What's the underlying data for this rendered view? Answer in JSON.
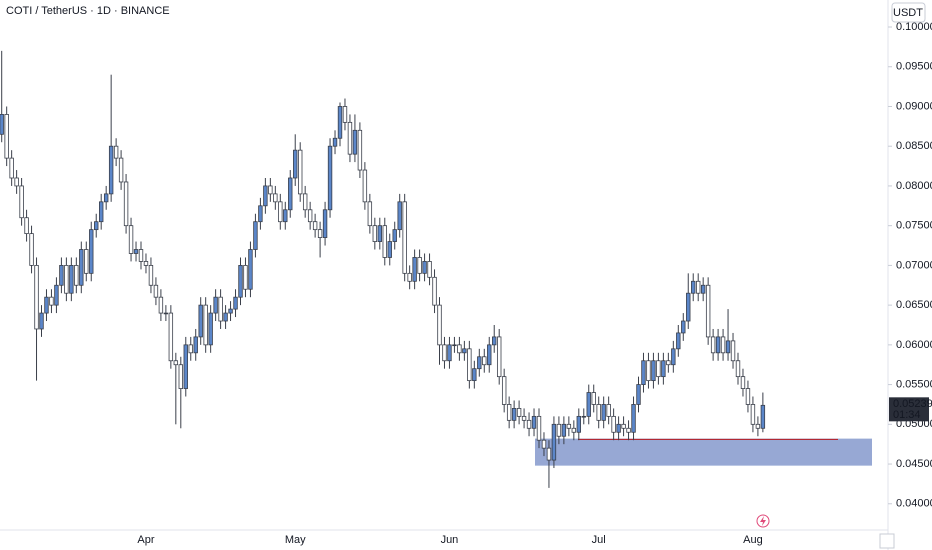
{
  "chart_data": {
    "type": "candlestick",
    "title": "COTI / TetherUS · 1D · BINANCE",
    "currency": "USDT",
    "categories": [
      null,
      null,
      null,
      null,
      null,
      null,
      null,
      null,
      null,
      null,
      null,
      null,
      null,
      null,
      null,
      null,
      null,
      null,
      null,
      null,
      null,
      null,
      null,
      null,
      null,
      null,
      null,
      null,
      null,
      "Apr",
      null,
      null,
      null,
      null,
      null,
      null,
      null,
      null,
      null,
      null,
      null,
      null,
      null,
      null,
      null,
      null,
      null,
      null,
      null,
      null,
      null,
      null,
      null,
      null,
      null,
      null,
      null,
      null,
      null,
      "May",
      null,
      null,
      null,
      null,
      null,
      null,
      null,
      null,
      null,
      null,
      null,
      null,
      null,
      null,
      null,
      null,
      null,
      null,
      null,
      null,
      null,
      null,
      null,
      null,
      null,
      null,
      null,
      null,
      null,
      null,
      "Jun",
      null,
      null,
      null,
      null,
      null,
      null,
      null,
      null,
      null,
      null,
      null,
      null,
      null,
      null,
      null,
      null,
      null,
      null,
      null,
      null,
      null,
      null,
      null,
      null,
      null,
      null,
      null,
      null,
      null,
      "Jul",
      null,
      null,
      null,
      null,
      null,
      null,
      null,
      null,
      null,
      null,
      null,
      null,
      null,
      null,
      null,
      null,
      null,
      null,
      null,
      null,
      null,
      null,
      null,
      null,
      null,
      null,
      null,
      null,
      null,
      null,
      "Aug",
      null,
      null
    ],
    "open": [
      0.0865,
      0.089,
      0.0835,
      0.081,
      0.08,
      0.076,
      0.074,
      0.07,
      0.062,
      0.064,
      0.066,
      0.065,
      0.0675,
      0.07,
      0.0665,
      0.07,
      0.0675,
      0.072,
      0.069,
      0.0745,
      0.0755,
      0.078,
      0.079,
      0.085,
      0.0835,
      0.0805,
      0.075,
      0.0715,
      0.072,
      0.0705,
      0.07,
      0.0675,
      0.066,
      0.064,
      0.064,
      0.058,
      0.0575,
      0.0545,
      0.06,
      0.059,
      0.061,
      0.065,
      0.06,
      0.064,
      0.066,
      0.063,
      0.064,
      0.0645,
      0.066,
      0.07,
      0.067,
      0.072,
      0.0755,
      0.0775,
      0.08,
      0.079,
      0.078,
      0.0755,
      0.077,
      0.081,
      0.0845,
      0.079,
      0.077,
      0.0755,
      0.0745,
      0.0735,
      0.077,
      0.085,
      0.086,
      0.09,
      0.088,
      0.084,
      0.087,
      0.082,
      0.078,
      0.075,
      0.073,
      0.075,
      0.071,
      0.073,
      0.0745,
      0.078,
      0.069,
      0.068,
      0.071,
      0.069,
      0.0705,
      0.0685,
      0.065,
      0.06,
      0.058,
      0.06,
      0.06,
      0.059,
      0.0595,
      0.0555,
      0.057,
      0.0585,
      0.0575,
      0.06,
      0.061,
      0.056,
      0.0525,
      0.0505,
      0.052,
      0.051,
      0.0505,
      0.0495,
      0.051,
      0.048,
      0.047,
      0.0455,
      0.05,
      0.0485,
      0.05,
      0.0495,
      0.049,
      0.051,
      0.051,
      0.054,
      0.0525,
      0.0505,
      0.0525,
      0.051,
      0.049,
      0.05,
      0.0495,
      0.049,
      0.0525,
      0.055,
      0.058,
      0.0555,
      0.058,
      0.056,
      0.058,
      0.0575,
      0.0595,
      0.0615,
      0.063,
      0.0665,
      0.068,
      0.0665,
      0.0675,
      0.061,
      0.059,
      0.061,
      0.059,
      0.0605,
      0.058,
      0.056,
      0.0545,
      0.0525,
      0.05,
      0.0495
    ],
    "high": [
      0.097,
      0.09,
      0.0845,
      0.082,
      0.081,
      0.077,
      0.075,
      0.071,
      0.065,
      0.067,
      0.067,
      0.0685,
      0.071,
      0.071,
      0.071,
      0.071,
      0.073,
      0.073,
      0.0755,
      0.0765,
      0.079,
      0.08,
      0.094,
      0.086,
      0.0845,
      0.0815,
      0.076,
      0.073,
      0.073,
      0.0715,
      0.071,
      0.0685,
      0.067,
      0.065,
      0.065,
      0.059,
      0.0585,
      0.061,
      0.061,
      0.062,
      0.066,
      0.066,
      0.065,
      0.067,
      0.067,
      0.065,
      0.0655,
      0.067,
      0.071,
      0.071,
      0.073,
      0.0765,
      0.0785,
      0.081,
      0.081,
      0.08,
      0.079,
      0.078,
      0.082,
      0.0865,
      0.0855,
      0.08,
      0.078,
      0.0765,
      0.0755,
      0.078,
      0.086,
      0.087,
      0.0905,
      0.091,
      0.089,
      0.089,
      0.088,
      0.083,
      0.079,
      0.076,
      0.076,
      0.076,
      0.074,
      0.0755,
      0.079,
      0.079,
      0.07,
      0.072,
      0.072,
      0.0715,
      0.0715,
      0.0695,
      0.066,
      0.061,
      0.061,
      0.061,
      0.061,
      0.0605,
      0.0605,
      0.058,
      0.0595,
      0.0595,
      0.061,
      0.0625,
      0.062,
      0.057,
      0.0535,
      0.053,
      0.053,
      0.052,
      0.0515,
      0.052,
      0.052,
      0.049,
      0.048,
      0.051,
      0.051,
      0.051,
      0.051,
      0.0505,
      0.052,
      0.052,
      0.055,
      0.055,
      0.0535,
      0.0535,
      0.0535,
      0.052,
      0.051,
      0.051,
      0.0505,
      0.0535,
      0.056,
      0.059,
      0.059,
      0.059,
      0.059,
      0.059,
      0.059,
      0.0605,
      0.0625,
      0.064,
      0.069,
      0.069,
      0.069,
      0.0685,
      0.0685,
      0.062,
      0.062,
      0.062,
      0.0645,
      0.0615,
      0.059,
      0.057,
      0.0555,
      0.0535,
      0.051,
      0.054
    ],
    "low": [
      0.0855,
      0.0825,
      0.08,
      0.079,
      0.075,
      0.073,
      0.069,
      0.0555,
      0.061,
      0.063,
      0.064,
      0.064,
      0.0665,
      0.0655,
      0.0655,
      0.0665,
      0.0665,
      0.068,
      0.068,
      0.0735,
      0.0745,
      0.077,
      0.078,
      0.0825,
      0.0795,
      0.074,
      0.0705,
      0.0705,
      0.0695,
      0.069,
      0.0665,
      0.065,
      0.063,
      0.063,
      0.057,
      0.05,
      0.0495,
      0.0535,
      0.058,
      0.058,
      0.06,
      0.059,
      0.059,
      0.063,
      0.062,
      0.062,
      0.063,
      0.0635,
      0.065,
      0.066,
      0.066,
      0.071,
      0.0745,
      0.0765,
      0.078,
      0.077,
      0.0745,
      0.0745,
      0.076,
      0.08,
      0.078,
      0.076,
      0.0745,
      0.0735,
      0.071,
      0.0725,
      0.076,
      0.084,
      0.085,
      0.087,
      0.083,
      0.083,
      0.081,
      0.077,
      0.074,
      0.072,
      0.072,
      0.07,
      0.07,
      0.072,
      0.0735,
      0.068,
      0.067,
      0.067,
      0.068,
      0.068,
      0.0675,
      0.064,
      0.0575,
      0.057,
      0.057,
      0.059,
      0.058,
      0.058,
      0.0545,
      0.0545,
      0.056,
      0.0565,
      0.0565,
      0.059,
      0.055,
      0.0515,
      0.0495,
      0.0495,
      0.05,
      0.0495,
      0.0485,
      0.0485,
      0.047,
      0.046,
      0.042,
      0.0445,
      0.0475,
      0.0475,
      0.0485,
      0.048,
      0.048,
      0.05,
      0.05,
      0.0515,
      0.0495,
      0.0495,
      0.05,
      0.048,
      0.048,
      0.0485,
      0.048,
      0.048,
      0.0515,
      0.054,
      0.0545,
      0.0545,
      0.055,
      0.055,
      0.0565,
      0.0565,
      0.0585,
      0.0605,
      0.062,
      0.0655,
      0.0655,
      0.0655,
      0.06,
      0.058,
      0.058,
      0.058,
      0.058,
      0.057,
      0.055,
      0.0535,
      0.0515,
      0.049,
      0.0485,
      0.049
    ],
    "close": [
      0.089,
      0.0835,
      0.081,
      0.08,
      0.076,
      0.074,
      0.07,
      0.062,
      0.064,
      0.066,
      0.065,
      0.0675,
      0.07,
      0.0665,
      0.07,
      0.0675,
      0.072,
      0.069,
      0.0745,
      0.0755,
      0.078,
      0.079,
      0.085,
      0.0835,
      0.0805,
      0.075,
      0.0715,
      0.072,
      0.0705,
      0.07,
      0.0675,
      0.066,
      0.064,
      0.064,
      0.058,
      0.0575,
      0.0545,
      0.06,
      0.059,
      0.061,
      0.065,
      0.06,
      0.064,
      0.066,
      0.063,
      0.064,
      0.0645,
      0.066,
      0.07,
      0.067,
      0.072,
      0.0755,
      0.0775,
      0.08,
      0.079,
      0.078,
      0.0755,
      0.077,
      0.081,
      0.0845,
      0.079,
      0.077,
      0.0755,
      0.0745,
      0.0735,
      0.077,
      0.085,
      0.086,
      0.09,
      0.088,
      0.084,
      0.087,
      0.082,
      0.078,
      0.075,
      0.073,
      0.075,
      0.071,
      0.073,
      0.0745,
      0.078,
      0.069,
      0.068,
      0.071,
      0.069,
      0.0705,
      0.0685,
      0.065,
      0.06,
      0.058,
      0.06,
      0.06,
      0.059,
      0.0595,
      0.0555,
      0.057,
      0.0585,
      0.0575,
      0.06,
      0.061,
      0.056,
      0.0525,
      0.0505,
      0.052,
      0.051,
      0.0505,
      0.0495,
      0.051,
      0.048,
      0.047,
      0.0455,
      0.05,
      0.0485,
      0.05,
      0.0495,
      0.049,
      0.051,
      0.051,
      0.054,
      0.0525,
      0.0505,
      0.0525,
      0.051,
      0.049,
      0.05,
      0.0495,
      0.049,
      0.0525,
      0.055,
      0.058,
      0.0555,
      0.058,
      0.056,
      0.058,
      0.0575,
      0.0595,
      0.0615,
      0.063,
      0.0665,
      0.068,
      0.0665,
      0.0675,
      0.061,
      0.059,
      0.061,
      0.059,
      0.0605,
      0.058,
      0.056,
      0.0545,
      0.0525,
      0.05,
      0.0495,
      0.05239
    ],
    "ylim": [
      0.0367,
      0.1034
    ],
    "yticks": [
      {
        "value": 0.1,
        "label": "0.10000"
      },
      {
        "value": 0.095,
        "label": "0.09500"
      },
      {
        "value": 0.09,
        "label": "0.09000"
      },
      {
        "value": 0.085,
        "label": "0.08500"
      },
      {
        "value": 0.08,
        "label": "0.08000"
      },
      {
        "value": 0.075,
        "label": "0.07500"
      },
      {
        "value": 0.07,
        "label": "0.07000"
      },
      {
        "value": 0.065,
        "label": "0.06500"
      },
      {
        "value": 0.06,
        "label": "0.06000"
      },
      {
        "value": 0.055,
        "label": "0.05500"
      },
      {
        "value": 0.05,
        "label": "0.05000"
      },
      {
        "value": 0.045,
        "label": "0.04500"
      },
      {
        "value": 0.04,
        "label": "0.04000"
      }
    ],
    "last_price": 0.05239,
    "countdown": "01:34",
    "zone": {
      "low": 0.0448,
      "high": 0.0482,
      "color": "#8c9fcf"
    },
    "level": {
      "value": 0.0481,
      "color": "#b22833"
    },
    "up_color": "#5b86c9",
    "down_color": "#ffffff",
    "grid": false
  }
}
